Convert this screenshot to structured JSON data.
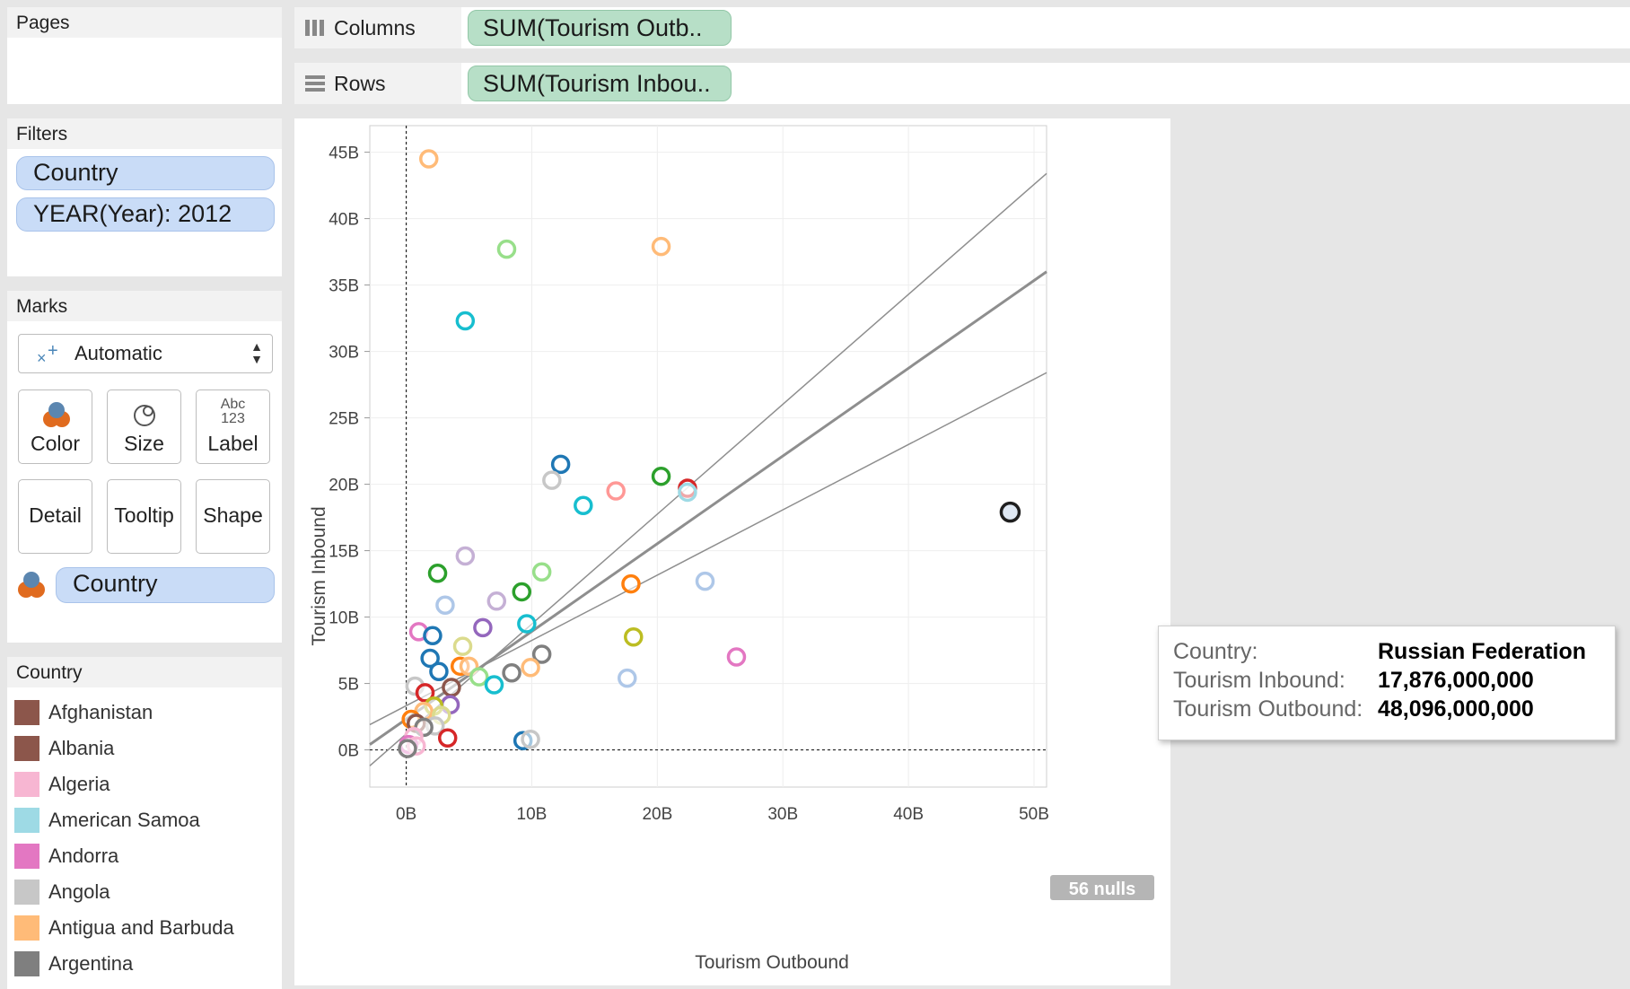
{
  "pages": {
    "title": "Pages"
  },
  "filters": {
    "title": "Filters",
    "items": [
      "Country",
      "YEAR(Year): 2012"
    ]
  },
  "marks": {
    "title": "Marks",
    "type_select": "Automatic",
    "buttons": {
      "color": "Color",
      "size": "Size",
      "label": "Label",
      "detail": "Detail",
      "tooltip": "Tooltip",
      "shape": "Shape"
    },
    "label_icon_text": [
      "Abc",
      "123"
    ],
    "color_pill": "Country"
  },
  "shelves": {
    "columns_label": "Columns",
    "columns_pill": "SUM(Tourism Outb..",
    "rows_label": "Rows",
    "rows_pill": "SUM(Tourism Inbou.."
  },
  "legend": {
    "title": "Country",
    "items": [
      {
        "label": "Afghanistan",
        "color": "#8c564b"
      },
      {
        "label": "Albania",
        "color": "#8c564b"
      },
      {
        "label": "Algeria",
        "color": "#f7b6d2"
      },
      {
        "label": "American Samoa",
        "color": "#9edae5"
      },
      {
        "label": "Andorra",
        "color": "#e377c2"
      },
      {
        "label": "Angola",
        "color": "#c7c7c7"
      },
      {
        "label": "Antigua and Barbuda",
        "color": "#ffbb78"
      },
      {
        "label": "Argentina",
        "color": "#7f7f7f"
      }
    ]
  },
  "tooltip": {
    "rows": [
      {
        "key": "Country:",
        "value": "Russian Federation"
      },
      {
        "key": "Tourism Inbound:",
        "value": "17,876,000,000"
      },
      {
        "key": "Tourism Outbound:",
        "value": "48,096,000,000"
      }
    ]
  },
  "nulls_badge": "56 nulls",
  "chart_data": {
    "type": "scatter",
    "xlabel": "Tourism Outbound",
    "ylabel": "Tourism Inbound",
    "xlim": [
      -2.9,
      51
    ],
    "ylim": [
      -2.8,
      47
    ],
    "x_ticks": [
      0,
      10,
      20,
      30,
      40,
      50
    ],
    "x_tick_labels": [
      "0B",
      "10B",
      "20B",
      "30B",
      "40B",
      "50B"
    ],
    "y_ticks": [
      0,
      5,
      10,
      15,
      20,
      25,
      30,
      35,
      40,
      45
    ],
    "y_tick_labels": [
      "0B",
      "5B",
      "10B",
      "15B",
      "20B",
      "25B",
      "30B",
      "35B",
      "40B",
      "45B"
    ],
    "units": "billions",
    "trend_lines": [
      {
        "name": "trend",
        "points": [
          [
            -2.9,
            0.4
          ],
          [
            51,
            36
          ]
        ]
      },
      {
        "name": "upper band",
        "points": [
          [
            -2.9,
            -1.2
          ],
          [
            51,
            43.4
          ]
        ]
      },
      {
        "name": "lower band",
        "points": [
          [
            -2.9,
            1.9
          ],
          [
            51,
            28.4
          ]
        ]
      }
    ],
    "highlighted": {
      "x": 48.1,
      "y": 17.9,
      "color": "#1f1f1f"
    },
    "points": [
      {
        "x": 1.8,
        "y": 44.5,
        "color": "#ffbb78"
      },
      {
        "x": 8.0,
        "y": 37.7,
        "color": "#98df8a"
      },
      {
        "x": 20.3,
        "y": 37.9,
        "color": "#ffbb78"
      },
      {
        "x": 4.7,
        "y": 32.3,
        "color": "#17becf"
      },
      {
        "x": 12.3,
        "y": 21.5,
        "color": "#1f77b4"
      },
      {
        "x": 11.6,
        "y": 20.3,
        "color": "#c7c7c7"
      },
      {
        "x": 20.3,
        "y": 20.6,
        "color": "#2ca02c"
      },
      {
        "x": 22.4,
        "y": 19.7,
        "color": "#d62728"
      },
      {
        "x": 22.4,
        "y": 19.4,
        "color": "#9edae5"
      },
      {
        "x": 16.7,
        "y": 19.5,
        "color": "#ff9896"
      },
      {
        "x": 14.1,
        "y": 18.4,
        "color": "#17becf"
      },
      {
        "x": 4.7,
        "y": 14.6,
        "color": "#c5b0d5"
      },
      {
        "x": 2.5,
        "y": 13.3,
        "color": "#2ca02c"
      },
      {
        "x": 10.8,
        "y": 13.4,
        "color": "#98df8a"
      },
      {
        "x": 17.9,
        "y": 12.5,
        "color": "#ff7f0e"
      },
      {
        "x": 23.8,
        "y": 12.7,
        "color": "#aec7e8"
      },
      {
        "x": 9.2,
        "y": 11.9,
        "color": "#2ca02c"
      },
      {
        "x": 7.2,
        "y": 11.2,
        "color": "#c5b0d5"
      },
      {
        "x": 3.1,
        "y": 10.9,
        "color": "#aec7e8"
      },
      {
        "x": 9.6,
        "y": 9.5,
        "color": "#17becf"
      },
      {
        "x": 6.1,
        "y": 9.2,
        "color": "#9467bd"
      },
      {
        "x": 1.0,
        "y": 8.9,
        "color": "#e377c2"
      },
      {
        "x": 2.1,
        "y": 8.6,
        "color": "#1f77b4"
      },
      {
        "x": 18.1,
        "y": 8.5,
        "color": "#bcbd22"
      },
      {
        "x": 4.5,
        "y": 7.8,
        "color": "#dbdb8d"
      },
      {
        "x": 10.8,
        "y": 7.2,
        "color": "#7f7f7f"
      },
      {
        "x": 26.3,
        "y": 7.0,
        "color": "#e377c2"
      },
      {
        "x": 1.9,
        "y": 6.9,
        "color": "#1f77b4"
      },
      {
        "x": 4.3,
        "y": 6.3,
        "color": "#ff7f0e"
      },
      {
        "x": 5.0,
        "y": 6.3,
        "color": "#ffbb78"
      },
      {
        "x": 9.9,
        "y": 6.2,
        "color": "#ffbb78"
      },
      {
        "x": 2.6,
        "y": 5.9,
        "color": "#1f77b4"
      },
      {
        "x": 8.4,
        "y": 5.8,
        "color": "#7f7f7f"
      },
      {
        "x": 5.8,
        "y": 5.5,
        "color": "#98df8a"
      },
      {
        "x": 17.6,
        "y": 5.4,
        "color": "#aec7e8"
      },
      {
        "x": 7.0,
        "y": 4.9,
        "color": "#17becf"
      },
      {
        "x": 0.7,
        "y": 4.8,
        "color": "#c7c7c7"
      },
      {
        "x": 3.6,
        "y": 4.7,
        "color": "#8c564b"
      },
      {
        "x": 1.5,
        "y": 4.3,
        "color": "#d62728"
      },
      {
        "x": 3.5,
        "y": 3.4,
        "color": "#9467bd"
      },
      {
        "x": 2.2,
        "y": 3.3,
        "color": "#bcbd22"
      },
      {
        "x": 1.4,
        "y": 2.9,
        "color": "#ffbb78"
      },
      {
        "x": 2.8,
        "y": 2.6,
        "color": "#dbdb8d"
      },
      {
        "x": 0.4,
        "y": 2.3,
        "color": "#ff7f0e"
      },
      {
        "x": 0.8,
        "y": 2.0,
        "color": "#8c564b"
      },
      {
        "x": 2.3,
        "y": 1.8,
        "color": "#c7c7c7"
      },
      {
        "x": 1.4,
        "y": 1.7,
        "color": "#7f7f7f"
      },
      {
        "x": 0.6,
        "y": 1.0,
        "color": "#f7b6d2"
      },
      {
        "x": 3.3,
        "y": 0.9,
        "color": "#d62728"
      },
      {
        "x": 9.3,
        "y": 0.7,
        "color": "#1f77b4"
      },
      {
        "x": 9.9,
        "y": 0.8,
        "color": "#c7c7c7"
      },
      {
        "x": 0.2,
        "y": 0.4,
        "color": "#e377c2"
      },
      {
        "x": 0.8,
        "y": 0.3,
        "color": "#f7b6d2"
      },
      {
        "x": 0.1,
        "y": 0.1,
        "color": "#7f7f7f"
      }
    ]
  }
}
